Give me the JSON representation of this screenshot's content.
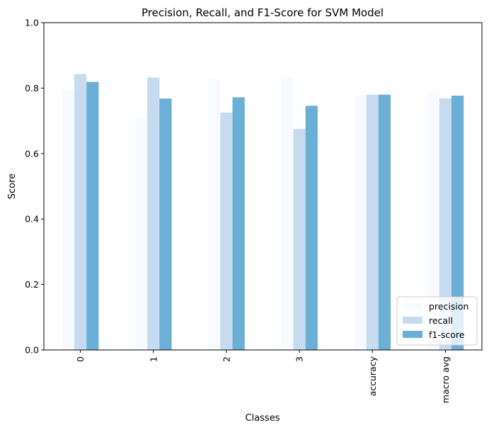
{
  "chart_data": {
    "type": "bar",
    "title": "Precision, Recall, and F1-Score for SVM Model",
    "xlabel": "Classes",
    "ylabel": "Score",
    "ylim": [
      0,
      1
    ],
    "yticks": [
      "0.0",
      "0.2",
      "0.4",
      "0.6",
      "0.8",
      "1.0"
    ],
    "categories": [
      "0",
      "1",
      "2",
      "3",
      "accuracy",
      "macro avg"
    ],
    "series": [
      {
        "name": "precision",
        "color": "#f7fbff",
        "values": [
          0.795,
          0.713,
          0.828,
          0.832,
          0.78,
          0.792
        ]
      },
      {
        "name": "recall",
        "color": "#c6dbef",
        "values": [
          0.843,
          0.832,
          0.725,
          0.675,
          0.78,
          0.769
        ]
      },
      {
        "name": "f1-score",
        "color": "#6baed6",
        "values": [
          0.819,
          0.768,
          0.772,
          0.746,
          0.78,
          0.777
        ]
      }
    ],
    "legend_position": "bottom-right",
    "grid": false
  }
}
